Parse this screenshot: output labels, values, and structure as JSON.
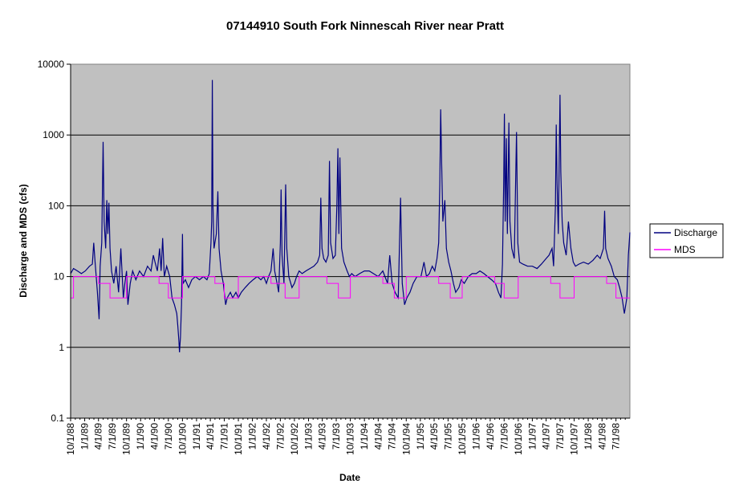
{
  "chart_data": {
    "type": "line",
    "title": "07144910 South Fork Ninnescah River near Pratt",
    "xlabel": "Date",
    "ylabel": "Discharge and MDS (cfs)",
    "y_scale": "log",
    "ylim": [
      0.1,
      10000
    ],
    "y_ticks": [
      "0.1",
      "1",
      "10",
      "100",
      "1000",
      "10000"
    ],
    "x_range": [
      "1988-10-01",
      "1998-09-30"
    ],
    "x_ticks": [
      "10/1/88",
      "1/1/89",
      "4/1/89",
      "7/1/89",
      "10/1/89",
      "1/1/90",
      "4/1/90",
      "7/1/90",
      "10/1/90",
      "1/1/91",
      "4/1/91",
      "7/1/91",
      "10/1/91",
      "1/1/92",
      "4/1/92",
      "7/1/92",
      "10/1/92",
      "1/1/93",
      "4/1/93",
      "7/1/93",
      "10/1/93",
      "1/1/94",
      "4/1/94",
      "7/1/94",
      "10/1/94",
      "1/1/95",
      "4/1/95",
      "7/1/95",
      "10/1/95",
      "1/1/96",
      "4/1/96",
      "7/1/96",
      "10/1/96",
      "1/1/97",
      "4/1/97",
      "7/1/97",
      "10/1/97",
      "1/1/98",
      "4/1/98",
      "7/1/98"
    ],
    "grid": "horizontal major lines",
    "plot_background": "#c0c0c0",
    "legend": {
      "position": "right",
      "entries": [
        "Discharge",
        "MDS"
      ]
    },
    "series": [
      {
        "name": "Discharge",
        "color": "#000080",
        "points": [
          [
            "1988-10-01",
            11
          ],
          [
            "1988-10-20",
            13
          ],
          [
            "1988-11-15",
            12
          ],
          [
            "1988-12-10",
            11
          ],
          [
            "1989-01-05",
            12
          ],
          [
            "1989-02-01",
            14
          ],
          [
            "1989-02-20",
            15
          ],
          [
            "1989-03-01",
            30
          ],
          [
            "1989-03-10",
            16
          ],
          [
            "1989-03-25",
            6
          ],
          [
            "1989-04-05",
            2.5
          ],
          [
            "1989-04-12",
            14
          ],
          [
            "1989-04-22",
            30
          ],
          [
            "1989-05-01",
            800
          ],
          [
            "1989-05-08",
            60
          ],
          [
            "1989-05-18",
            25
          ],
          [
            "1989-05-25",
            120
          ],
          [
            "1989-06-01",
            40
          ],
          [
            "1989-06-08",
            110
          ],
          [
            "1989-06-15",
            25
          ],
          [
            "1989-06-25",
            12
          ],
          [
            "1989-07-10",
            8
          ],
          [
            "1989-07-25",
            14
          ],
          [
            "1989-08-10",
            6
          ],
          [
            "1989-08-25",
            25
          ],
          [
            "1989-09-10",
            5
          ],
          [
            "1989-09-20",
            8
          ],
          [
            "1989-10-01",
            12
          ],
          [
            "1989-10-10",
            4
          ],
          [
            "1989-10-25",
            8
          ],
          [
            "1989-11-10",
            12
          ],
          [
            "1989-12-01",
            9
          ],
          [
            "1989-12-25",
            12
          ],
          [
            "1990-01-20",
            10
          ],
          [
            "1990-02-15",
            14
          ],
          [
            "1990-03-10",
            12
          ],
          [
            "1990-03-25",
            20
          ],
          [
            "1990-04-05",
            16
          ],
          [
            "1990-04-20",
            12
          ],
          [
            "1990-05-05",
            25
          ],
          [
            "1990-05-15",
            12
          ],
          [
            "1990-05-25",
            35
          ],
          [
            "1990-06-05",
            10
          ],
          [
            "1990-06-20",
            14
          ],
          [
            "1990-07-10",
            10
          ],
          [
            "1990-07-25",
            5
          ],
          [
            "1990-08-10",
            4
          ],
          [
            "1990-08-25",
            3
          ],
          [
            "1990-09-01",
            2
          ],
          [
            "1990-09-08",
            1.2
          ],
          [
            "1990-09-12",
            0.85
          ],
          [
            "1990-09-18",
            1.4
          ],
          [
            "1990-09-25",
            4
          ],
          [
            "1990-10-01",
            40
          ],
          [
            "1990-10-05",
            8
          ],
          [
            "1990-10-20",
            9
          ],
          [
            "1990-11-10",
            7
          ],
          [
            "1990-12-01",
            9
          ],
          [
            "1990-12-25",
            10
          ],
          [
            "1991-01-20",
            9
          ],
          [
            "1991-02-15",
            10
          ],
          [
            "1991-03-10",
            9
          ],
          [
            "1991-03-25",
            11
          ],
          [
            "1991-04-05",
            30
          ],
          [
            "1991-04-10",
            60
          ],
          [
            "1991-04-14",
            6000
          ],
          [
            "1991-04-18",
            100
          ],
          [
            "1991-04-25",
            25
          ],
          [
            "1991-05-10",
            40
          ],
          [
            "1991-05-20",
            160
          ],
          [
            "1991-05-28",
            25
          ],
          [
            "1991-06-10",
            12
          ],
          [
            "1991-06-25",
            8
          ],
          [
            "1991-07-10",
            4
          ],
          [
            "1991-07-20",
            5
          ],
          [
            "1991-08-10",
            6
          ],
          [
            "1991-08-25",
            5
          ],
          [
            "1991-09-15",
            6
          ],
          [
            "1991-10-01",
            5
          ],
          [
            "1991-10-20",
            6
          ],
          [
            "1991-11-15",
            7
          ],
          [
            "1991-12-10",
            8
          ],
          [
            "1992-01-05",
            9
          ],
          [
            "1992-02-01",
            10
          ],
          [
            "1992-02-25",
            9
          ],
          [
            "1992-03-15",
            10
          ],
          [
            "1992-04-01",
            8
          ],
          [
            "1992-04-15",
            10
          ],
          [
            "1992-05-01",
            12
          ],
          [
            "1992-05-15",
            25
          ],
          [
            "1992-05-25",
            12
          ],
          [
            "1992-06-10",
            8
          ],
          [
            "1992-06-20",
            6
          ],
          [
            "1992-07-01",
            30
          ],
          [
            "1992-07-06",
            170
          ],
          [
            "1992-07-12",
            20
          ],
          [
            "1992-07-25",
            8
          ],
          [
            "1992-08-05",
            200
          ],
          [
            "1992-08-12",
            25
          ],
          [
            "1992-08-25",
            10
          ],
          [
            "1992-09-15",
            7
          ],
          [
            "1992-10-01",
            8
          ],
          [
            "1992-10-15",
            10
          ],
          [
            "1992-11-01",
            12
          ],
          [
            "1992-11-20",
            11
          ],
          [
            "1992-12-15",
            12
          ],
          [
            "1993-01-10",
            13
          ],
          [
            "1993-02-05",
            14
          ],
          [
            "1993-03-01",
            16
          ],
          [
            "1993-03-15",
            20
          ],
          [
            "1993-03-22",
            130
          ],
          [
            "1993-03-30",
            25
          ],
          [
            "1993-04-10",
            18
          ],
          [
            "1993-04-25",
            16
          ],
          [
            "1993-05-10",
            20
          ],
          [
            "1993-05-18",
            430
          ],
          [
            "1993-05-25",
            30
          ],
          [
            "1993-06-10",
            18
          ],
          [
            "1993-06-25",
            20
          ],
          [
            "1993-07-05",
            100
          ],
          [
            "1993-07-12",
            650
          ],
          [
            "1993-07-18",
            40
          ],
          [
            "1993-07-25",
            480
          ],
          [
            "1993-08-05",
            25
          ],
          [
            "1993-08-20",
            16
          ],
          [
            "1993-09-10",
            12
          ],
          [
            "1993-09-25",
            10
          ],
          [
            "1993-10-10",
            11
          ],
          [
            "1993-11-01",
            10
          ],
          [
            "1993-12-01",
            11
          ],
          [
            "1994-01-01",
            12
          ],
          [
            "1994-02-01",
            12
          ],
          [
            "1994-03-01",
            11
          ],
          [
            "1994-04-01",
            10
          ],
          [
            "1994-05-01",
            12
          ],
          [
            "1994-06-01",
            8
          ],
          [
            "1994-06-15",
            20
          ],
          [
            "1994-07-01",
            8
          ],
          [
            "1994-07-20",
            6
          ],
          [
            "1994-08-10",
            5
          ],
          [
            "1994-08-25",
            130
          ],
          [
            "1994-09-05",
            8
          ],
          [
            "1994-09-20",
            4
          ],
          [
            "1994-10-05",
            5
          ],
          [
            "1994-10-25",
            6
          ],
          [
            "1994-11-15",
            8
          ],
          [
            "1994-12-10",
            10
          ],
          [
            "1995-01-05",
            10
          ],
          [
            "1995-01-25",
            16
          ],
          [
            "1995-02-10",
            10
          ],
          [
            "1995-03-01",
            11
          ],
          [
            "1995-03-20",
            14
          ],
          [
            "1995-04-05",
            12
          ],
          [
            "1995-04-20",
            18
          ],
          [
            "1995-05-01",
            30
          ],
          [
            "1995-05-08",
            200
          ],
          [
            "1995-05-14",
            2300
          ],
          [
            "1995-05-20",
            400
          ],
          [
            "1995-05-28",
            60
          ],
          [
            "1995-06-10",
            120
          ],
          [
            "1995-06-20",
            25
          ],
          [
            "1995-07-05",
            16
          ],
          [
            "1995-07-20",
            12
          ],
          [
            "1995-08-05",
            8
          ],
          [
            "1995-08-20",
            6
          ],
          [
            "1995-09-10",
            7
          ],
          [
            "1995-09-25",
            9
          ],
          [
            "1995-10-15",
            8
          ],
          [
            "1995-11-10",
            10
          ],
          [
            "1995-12-05",
            11
          ],
          [
            "1996-01-01",
            11
          ],
          [
            "1996-01-25",
            12
          ],
          [
            "1996-02-20",
            11
          ],
          [
            "1996-03-15",
            10
          ],
          [
            "1996-04-10",
            9
          ],
          [
            "1996-05-05",
            8
          ],
          [
            "1996-05-25",
            6
          ],
          [
            "1996-06-10",
            5
          ],
          [
            "1996-06-20",
            15
          ],
          [
            "1996-06-28",
            200
          ],
          [
            "1996-07-03",
            2000
          ],
          [
            "1996-07-08",
            60
          ],
          [
            "1996-07-16",
            900
          ],
          [
            "1996-07-22",
            40
          ],
          [
            "1996-08-01",
            1500
          ],
          [
            "1996-08-08",
            60
          ],
          [
            "1996-08-20",
            25
          ],
          [
            "1996-09-05",
            18
          ],
          [
            "1996-09-20",
            1100
          ],
          [
            "1996-09-28",
            30
          ],
          [
            "1996-10-10",
            16
          ],
          [
            "1996-11-01",
            15
          ],
          [
            "1996-12-01",
            14
          ],
          [
            "1997-01-01",
            14
          ],
          [
            "1997-02-01",
            13
          ],
          [
            "1997-03-01",
            15
          ],
          [
            "1997-04-01",
            18
          ],
          [
            "1997-04-20",
            20
          ],
          [
            "1997-05-10",
            25
          ],
          [
            "1997-05-20",
            14
          ],
          [
            "1997-06-01",
            100
          ],
          [
            "1997-06-06",
            1400
          ],
          [
            "1997-06-12",
            200
          ],
          [
            "1997-06-20",
            40
          ],
          [
            "1997-07-01",
            3700
          ],
          [
            "1997-07-06",
            300
          ],
          [
            "1997-07-15",
            60
          ],
          [
            "1997-07-25",
            30
          ],
          [
            "1997-08-10",
            20
          ],
          [
            "1997-08-25",
            60
          ],
          [
            "1997-09-10",
            25
          ],
          [
            "1997-09-25",
            16
          ],
          [
            "1997-10-10",
            14
          ],
          [
            "1997-11-01",
            15
          ],
          [
            "1997-12-01",
            16
          ],
          [
            "1998-01-01",
            15
          ],
          [
            "1998-02-01",
            17
          ],
          [
            "1998-03-01",
            20
          ],
          [
            "1998-03-20",
            18
          ],
          [
            "1998-04-10",
            25
          ],
          [
            "1998-04-18",
            85
          ],
          [
            "1998-04-25",
            25
          ],
          [
            "1998-05-10",
            18
          ],
          [
            "1998-06-01",
            14
          ],
          [
            "1998-06-20",
            10
          ],
          [
            "1998-07-10",
            9
          ],
          [
            "1998-07-25",
            7
          ],
          [
            "1998-08-10",
            5
          ],
          [
            "1998-08-25",
            3
          ],
          [
            "1998-09-10",
            5
          ],
          [
            "1998-09-20",
            20
          ],
          [
            "1998-09-30",
            42
          ]
        ]
      },
      {
        "name": "MDS",
        "color": "#ff00ff",
        "step": true,
        "points": [
          [
            "1988-10-01",
            5
          ],
          [
            "1988-10-20",
            10
          ],
          [
            "1989-04-01",
            8
          ],
          [
            "1989-06-15",
            5
          ],
          [
            "1989-09-15",
            5
          ],
          [
            "1989-10-01",
            10
          ],
          [
            "1990-05-01",
            8
          ],
          [
            "1990-07-01",
            5
          ],
          [
            "1990-10-01",
            10
          ],
          [
            "1991-05-01",
            8
          ],
          [
            "1991-07-01",
            5
          ],
          [
            "1991-10-01",
            10
          ],
          [
            "1992-05-01",
            8
          ],
          [
            "1992-08-01",
            5
          ],
          [
            "1992-11-01",
            10
          ],
          [
            "1993-05-01",
            8
          ],
          [
            "1993-07-15",
            5
          ],
          [
            "1993-10-01",
            10
          ],
          [
            "1994-05-01",
            8
          ],
          [
            "1994-07-15",
            5
          ],
          [
            "1994-10-01",
            10
          ],
          [
            "1995-05-01",
            8
          ],
          [
            "1995-07-15",
            5
          ],
          [
            "1995-10-01",
            10
          ],
          [
            "1996-05-01",
            8
          ],
          [
            "1996-07-01",
            5
          ],
          [
            "1996-10-01",
            10
          ],
          [
            "1997-05-01",
            8
          ],
          [
            "1997-07-01",
            5
          ],
          [
            "1997-10-01",
            10
          ],
          [
            "1998-05-01",
            8
          ],
          [
            "1998-07-01",
            5
          ],
          [
            "1998-09-30",
            5
          ]
        ]
      }
    ]
  }
}
